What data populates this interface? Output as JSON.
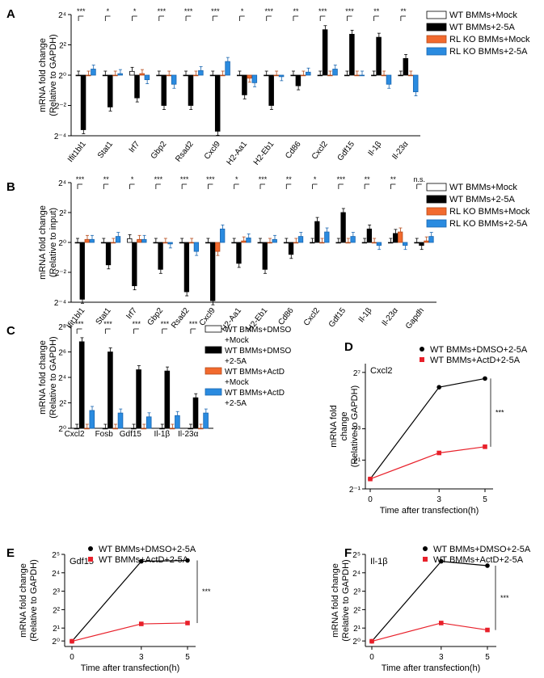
{
  "colors": {
    "mock": "#ffffff",
    "wt25a": "#000000",
    "rlmock": "#f26a2e",
    "rl25a": "#2a8be0",
    "red": "#e8202a"
  },
  "chart_data": [
    {
      "panel": "A",
      "type": "bar",
      "ylabel": [
        "mRNA fold change",
        "(Relative to GAPDH)"
      ],
      "yticks": [
        "2⁴",
        "2²",
        "2⁰",
        "2⁻²",
        "2⁻⁴"
      ],
      "ylim": [
        -4,
        4
      ],
      "categories": [
        "Ifit1bl1",
        "Stat1",
        "Irf7",
        "Gbp2",
        "Rsad2",
        "Cxcl9",
        "H2-Aa1",
        "H2-Eb1",
        "Cd86",
        "Cxcl2",
        "Gdf15",
        "Il-1β",
        "Il-23α"
      ],
      "signif": [
        "***",
        "*",
        "*",
        "***",
        "***",
        "***",
        "*",
        "***",
        "**",
        "***",
        "***",
        "**",
        "**"
      ],
      "legend": [
        "WT BMMs+Mock",
        "WT BMMs+2-5A",
        "RL KO BMMs+Mock",
        "RL KO BMMs+2-5A"
      ],
      "series": [
        {
          "name": "WT BMMs+Mock",
          "values": [
            0,
            0,
            0.25,
            0,
            0,
            0,
            0,
            0,
            0,
            0,
            0,
            0,
            0
          ]
        },
        {
          "name": "WT BMMs+2-5A",
          "values": [
            -3.6,
            -2.1,
            -1.5,
            -2.0,
            -2.0,
            -3.7,
            -1.3,
            -2.0,
            -0.7,
            3.0,
            2.7,
            2.5,
            1.1
          ]
        },
        {
          "name": "RL KO BMMs+Mock",
          "values": [
            0,
            0,
            0.1,
            0,
            0,
            0,
            -0.2,
            0,
            0,
            0,
            0,
            0,
            0
          ]
        },
        {
          "name": "RL KO BMMs+2-5A",
          "values": [
            0.4,
            0.1,
            -0.3,
            -0.6,
            0.3,
            0.9,
            -0.5,
            -0.1,
            0.2,
            0.4,
            0,
            -0.6,
            -1.1
          ]
        }
      ]
    },
    {
      "panel": "B",
      "type": "bar",
      "ylabel": [
        "mRNA fold change",
        "(Relative to input)"
      ],
      "yticks": [
        "2⁴",
        "2²",
        "2⁰",
        "2⁻²",
        "2⁻⁴"
      ],
      "ylim": [
        -4,
        4
      ],
      "categories": [
        "Ifit1bl1",
        "Stat1",
        "Irf7",
        "Gbp2",
        "Rsad2",
        "Cxcl9",
        "H2-Aa1",
        "H2-Eb1",
        "Cd86",
        "Cxcl2",
        "Gdf15",
        "Il-1β",
        "Il-23α",
        "Gapdh"
      ],
      "signif": [
        "***",
        "**",
        "*",
        "***",
        "***",
        "***",
        "*",
        "***",
        "**",
        "*",
        "***",
        "**",
        "**",
        "n.s."
      ],
      "legend": [
        "WT BMMs+Mock",
        "WT BMMs+2-5A",
        "RL KO BMMs+Mock",
        "RL KO BMMs+2-5A"
      ],
      "series": [
        {
          "name": "WT BMMs+Mock",
          "values": [
            0,
            0,
            0.25,
            0,
            0,
            0,
            0,
            0,
            0,
            0,
            0,
            0,
            0,
            0
          ]
        },
        {
          "name": "WT BMMs+2-5A",
          "values": [
            -3.8,
            -1.5,
            -2.9,
            -1.8,
            -3.3,
            -3.9,
            -1.4,
            -1.8,
            -0.8,
            1.4,
            2.0,
            0.9,
            0.6,
            -0.2
          ]
        },
        {
          "name": "RL KO BMMs+Mock",
          "values": [
            0.2,
            0,
            0.2,
            0,
            0,
            -0.6,
            0.1,
            0,
            0,
            0,
            0,
            0,
            0.7,
            0.1
          ]
        },
        {
          "name": "RL KO BMMs+2-5A",
          "values": [
            0.2,
            0.4,
            0.2,
            -0.1,
            -0.6,
            0.9,
            0.3,
            0.2,
            0.4,
            0.7,
            0.4,
            -0.2,
            -0.2,
            0.4
          ]
        }
      ]
    },
    {
      "panel": "C",
      "type": "bar",
      "ylabel": [
        "mRNA fold change",
        "(Relative to GAPDH)"
      ],
      "yticks": [
        "2⁸",
        "2⁶",
        "2⁴",
        "2²",
        "2⁰"
      ],
      "ylim": [
        0,
        8
      ],
      "categories": [
        "Cxcl2",
        "Fosb",
        "Gdf15",
        "Il-1β",
        "Il-23α"
      ],
      "signif": [
        "***",
        "***",
        "***",
        "***",
        "***"
      ],
      "legend": [
        "WT BMMs+DMSO",
        "+Mock",
        "WT BMMs+DMSO",
        "+2-5A",
        "WT BMMs+ActD",
        "+Mock",
        "WT BMMs+ActD",
        "+2-5A"
      ],
      "series": [
        {
          "name": "WT BMMs+DMSO +Mock",
          "values": [
            0,
            0,
            0,
            0,
            0
          ]
        },
        {
          "name": "WT BMMs+DMSO +2-5A",
          "values": [
            6.8,
            6.0,
            4.6,
            4.5,
            2.4
          ]
        },
        {
          "name": "WT BMMs+ActD +Mock",
          "values": [
            0,
            0,
            0,
            0,
            0
          ]
        },
        {
          "name": "WT BMMs+ActD +2-5A",
          "values": [
            1.4,
            1.2,
            0.9,
            1.0,
            1.2
          ]
        }
      ]
    },
    {
      "panel": "D",
      "type": "line",
      "title": "Cxcl2",
      "xlabel": "Time after transfection(h)",
      "ylabel": [
        "mRNA fold",
        "change",
        "(Relative to GAPDH)"
      ],
      "x": [
        0,
        3,
        5
      ],
      "xticks": [
        "0",
        "3",
        "5"
      ],
      "yticks": [
        "2⁷",
        "2³",
        "2¹",
        "2⁻¹"
      ],
      "signif": "***",
      "legend": [
        "WT BMMs+DMSO+2-5A",
        "WT BMMs+ActD+2-5A"
      ],
      "series": [
        {
          "name": "WT BMMs+DMSO+2-5A",
          "values": [
            -0.5,
            6.9,
            7.6
          ]
        },
        {
          "name": "WT BMMs+ActD+2-5A",
          "values": [
            -0.5,
            1.6,
            2.1
          ]
        }
      ]
    },
    {
      "panel": "E",
      "type": "line",
      "title": "Gdf15",
      "xlabel": "Time after transfection(h)",
      "ylabel": [
        "mRNA fold change",
        "(Relative to GAPDH)"
      ],
      "x": [
        0,
        3,
        5
      ],
      "xticks": [
        "0",
        "3",
        "5"
      ],
      "yticks": [
        "2⁵",
        "2⁴",
        "2³",
        "2²",
        "2¹",
        "2⁰"
      ],
      "signif": "***",
      "legend": [
        "WT BMMs+DMSO+2-5A",
        "WT BMMs+ActD+2-5A"
      ],
      "series": [
        {
          "name": "WT BMMs+DMSO+2-5A",
          "values": [
            0,
            4.6,
            4.65
          ]
        },
        {
          "name": "WT BMMs+ActD+2-5A",
          "values": [
            0,
            1.0,
            1.05
          ]
        }
      ]
    },
    {
      "panel": "F",
      "type": "line",
      "title": "Il-1β",
      "xlabel": "Time after transfection(h)",
      "ylabel": [
        "mRNA fold change",
        "(Relative to GAPDH)"
      ],
      "x": [
        0,
        3,
        5
      ],
      "xticks": [
        "0",
        "3",
        "5"
      ],
      "yticks": [
        "2⁵",
        "2⁴",
        "2³",
        "2²",
        "2¹",
        "2⁰"
      ],
      "signif": "***",
      "legend": [
        "WT BMMs+DMSO+2-5A",
        "WT BMMs+ActD+2-5A"
      ],
      "series": [
        {
          "name": "WT BMMs+DMSO+2-5A",
          "values": [
            0,
            4.6,
            4.35
          ]
        },
        {
          "name": "WT BMMs+ActD+2-5A",
          "values": [
            0,
            1.05,
            0.65
          ]
        }
      ]
    }
  ]
}
